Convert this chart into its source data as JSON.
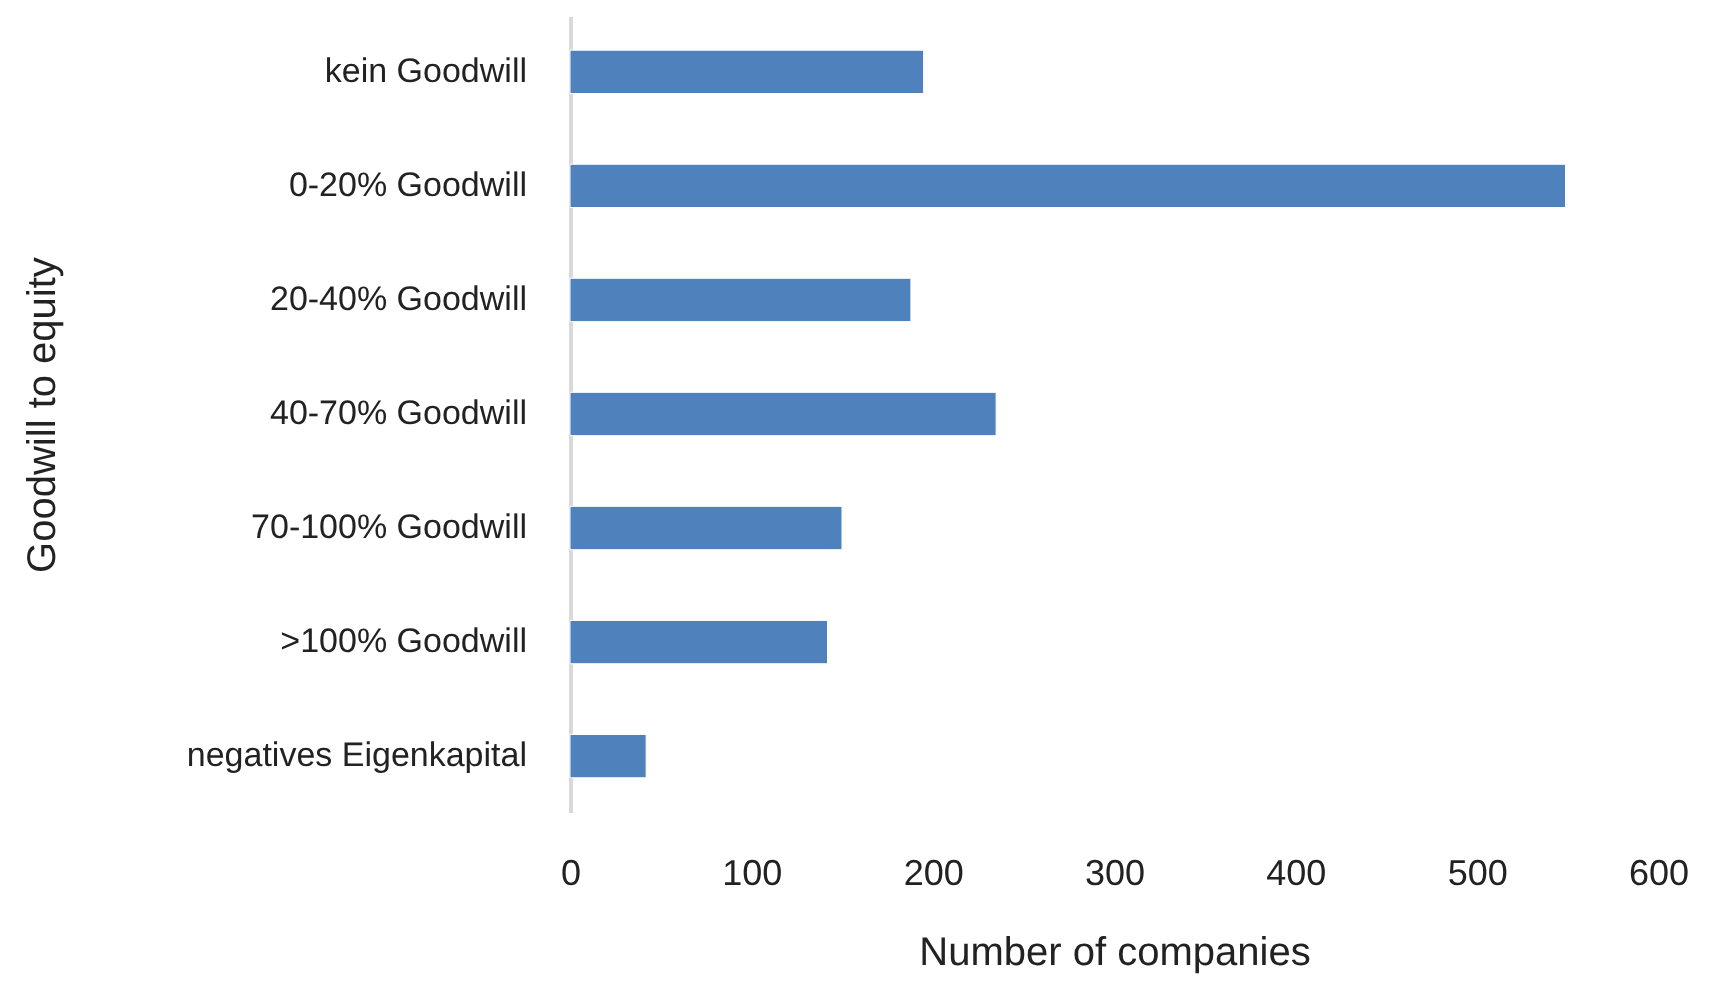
{
  "chart_data": {
    "type": "bar",
    "orientation": "horizontal",
    "xlabel": "Number of companies",
    "ylabel": "Goodwill to equity",
    "categories": [
      "kein Goodwill",
      "0-20% Goodwill",
      "20-40% Goodwill",
      "40-70% Goodwill",
      "70-100% Goodwill",
      ">100% Goodwill",
      "negatives Eigenkapital"
    ],
    "values": [
      195,
      549,
      188,
      235,
      150,
      142,
      42
    ],
    "color": "#4f81bd",
    "xlim": [
      0,
      600
    ],
    "xticks": [
      0,
      100,
      200,
      300,
      400,
      500,
      600
    ],
    "grid": false
  }
}
